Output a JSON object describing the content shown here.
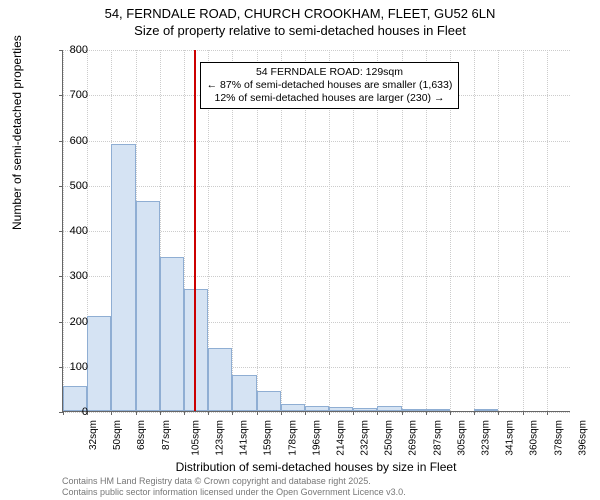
{
  "title": {
    "line1": "54, FERNDALE ROAD, CHURCH CROOKHAM, FLEET, GU52 6LN",
    "line2": "Size of property relative to semi-detached houses in Fleet"
  },
  "chart": {
    "type": "histogram",
    "ylabel": "Number of semi-detached properties",
    "xlabel": "Distribution of semi-detached houses by size in Fleet",
    "ylim": [
      0,
      800
    ],
    "ytick_step": 100,
    "yticks": [
      0,
      100,
      200,
      300,
      400,
      500,
      600,
      700,
      800
    ],
    "xtick_labels": [
      "32sqm",
      "50sqm",
      "68sqm",
      "87sqm",
      "105sqm",
      "123sqm",
      "141sqm",
      "159sqm",
      "178sqm",
      "196sqm",
      "214sqm",
      "232sqm",
      "250sqm",
      "269sqm",
      "287sqm",
      "305sqm",
      "323sqm",
      "341sqm",
      "360sqm",
      "378sqm",
      "396sqm"
    ],
    "bars": [
      55,
      210,
      590,
      465,
      340,
      270,
      140,
      80,
      45,
      15,
      10,
      8,
      6,
      12,
      4,
      2,
      0,
      2,
      0,
      0,
      0
    ],
    "bar_color": "#d5e3f3",
    "bar_border_color": "#8faed3",
    "grid_color": "#cccccc",
    "axis_color": "#666666",
    "background_color": "#ffffff",
    "marker": {
      "position_index": 5.4,
      "color": "#cc0000"
    },
    "annotation": {
      "line1": "54 FERNDALE ROAD: 129sqm",
      "line2": "← 87% of semi-detached houses are smaller (1,633)",
      "line3": "12% of semi-detached houses are larger (230) →",
      "border_color": "#000000",
      "bg_color": "#ffffff",
      "font_size": 10.5
    },
    "title_fontsize": 13,
    "label_fontsize": 12,
    "tick_fontsize": 11
  },
  "footer": {
    "line1": "Contains HM Land Registry data © Crown copyright and database right 2025.",
    "line2": "Contains public sector information licensed under the Open Government Licence v3.0."
  }
}
